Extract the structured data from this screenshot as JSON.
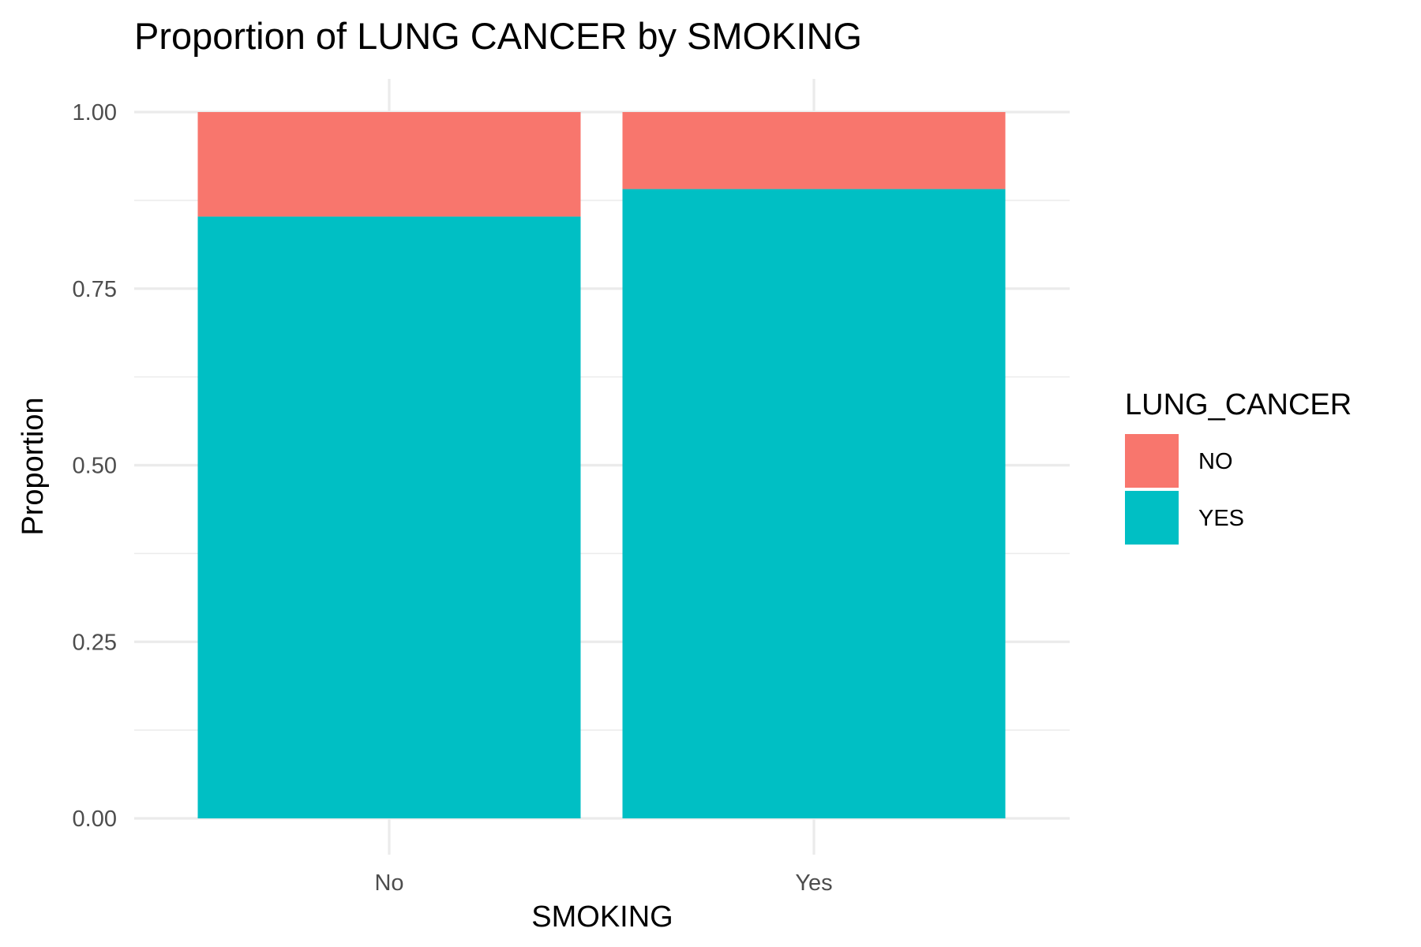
{
  "chart_data": {
    "type": "bar",
    "stacked": true,
    "title": "Proportion of LUNG CANCER by SMOKING",
    "xlabel": "SMOKING",
    "ylabel": "Proportion",
    "categories": [
      "No",
      "Yes"
    ],
    "series": [
      {
        "name": "YES",
        "color": "#00BFC4",
        "values": [
          0.852,
          0.891
        ]
      },
      {
        "name": "NO",
        "color": "#F8766D",
        "values": [
          0.148,
          0.109
        ]
      }
    ],
    "ylim": [
      0,
      1
    ],
    "yticks": [
      0,
      0.25,
      0.5,
      0.75,
      1
    ],
    "ytick_labels": [
      "0.00",
      "0.25",
      "0.50",
      "0.75",
      "1.00"
    ],
    "grid": true,
    "legend": {
      "title": "LUNG_CANCER",
      "placement": "right",
      "items": [
        {
          "label": "NO",
          "color": "#F8766D"
        },
        {
          "label": "YES",
          "color": "#00BFC4"
        }
      ]
    }
  }
}
